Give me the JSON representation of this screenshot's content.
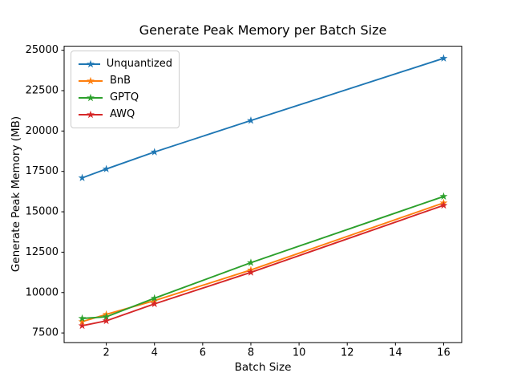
{
  "figure": {
    "background": "#ffffff"
  },
  "chart_data": {
    "type": "line",
    "title": "Generate Peak Memory per Batch Size",
    "xlabel": "Batch Size",
    "ylabel": "Generate Peak Memory (MB)",
    "x": [
      1,
      2,
      4,
      8,
      16
    ],
    "series": [
      {
        "name": "Unquantized",
        "color": "#1f77b4",
        "marker": "star",
        "values": [
          17100,
          17650,
          18700,
          20650,
          24500
        ]
      },
      {
        "name": "BnB",
        "color": "#ff7f0e",
        "marker": "star",
        "values": [
          8200,
          8650,
          9500,
          11400,
          15550
        ]
      },
      {
        "name": "GPTQ",
        "color": "#2ca02c",
        "marker": "star",
        "values": [
          8400,
          8500,
          9650,
          11850,
          15950
        ]
      },
      {
        "name": "AWQ",
        "color": "#d62728",
        "marker": "star",
        "values": [
          7950,
          8250,
          9300,
          11250,
          15400
        ]
      }
    ],
    "xlim": [
      0.25,
      16.75
    ],
    "ylim": [
      6900,
      25250
    ],
    "xticks": [
      2,
      4,
      6,
      8,
      10,
      12,
      14,
      16
    ],
    "yticks": [
      7500,
      10000,
      12500,
      15000,
      17500,
      20000,
      22500,
      25000
    ],
    "grid": false,
    "legend_position": "upper left",
    "axis_color": "#000000"
  }
}
